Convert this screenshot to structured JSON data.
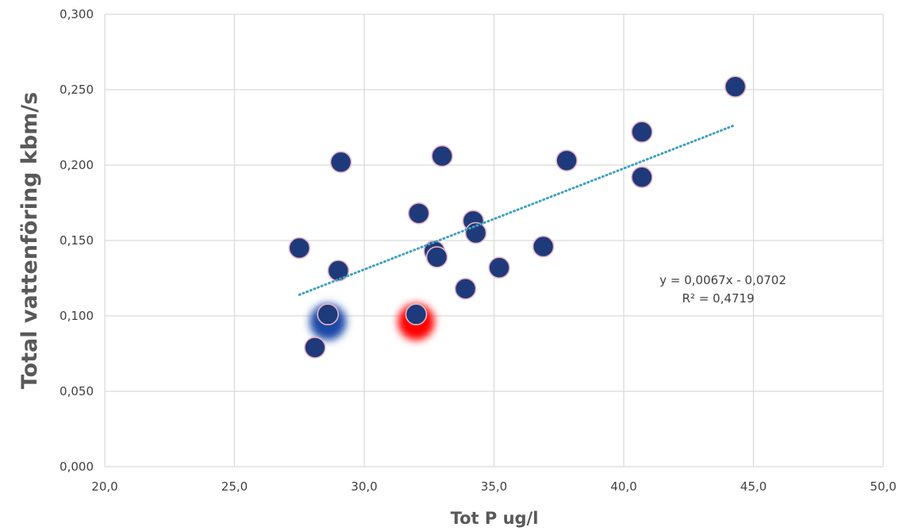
{
  "chart_data": {
    "type": "scatter",
    "xlabel": "Tot P ug/l",
    "ylabel": "Total vattenföring kbm/s",
    "xlim": [
      20,
      50
    ],
    "ylim": [
      0,
      0.3
    ],
    "x_ticks": [
      "20,0",
      "25,0",
      "30,0",
      "35,0",
      "40,0",
      "45,0",
      "50,0"
    ],
    "y_ticks": [
      "0,000",
      "0,050",
      "0,100",
      "0,150",
      "0,200",
      "0,250",
      "0,300"
    ],
    "grid": true,
    "series": [
      {
        "marker_color": "#1f3a7a",
        "marker_edge_color": "#e8b4c8",
        "points": [
          {
            "x": 27.5,
            "y": 0.145
          },
          {
            "x": 28.1,
            "y": 0.079
          },
          {
            "x": 28.6,
            "y": 0.101
          },
          {
            "x": 29.0,
            "y": 0.13
          },
          {
            "x": 29.1,
            "y": 0.202
          },
          {
            "x": 32.0,
            "y": 0.101
          },
          {
            "x": 32.1,
            "y": 0.168
          },
          {
            "x": 32.7,
            "y": 0.143
          },
          {
            "x": 32.8,
            "y": 0.139
          },
          {
            "x": 33.0,
            "y": 0.206
          },
          {
            "x": 33.9,
            "y": 0.118
          },
          {
            "x": 34.2,
            "y": 0.163
          },
          {
            "x": 34.3,
            "y": 0.155
          },
          {
            "x": 35.2,
            "y": 0.132
          },
          {
            "x": 36.9,
            "y": 0.146
          },
          {
            "x": 37.8,
            "y": 0.203
          },
          {
            "x": 40.7,
            "y": 0.222
          },
          {
            "x": 40.7,
            "y": 0.192
          },
          {
            "x": 44.3,
            "y": 0.252
          }
        ]
      }
    ],
    "highlights": [
      {
        "x": 28.6,
        "y": 0.096,
        "color": "#1a4aa8"
      },
      {
        "x": 32.0,
        "y": 0.096,
        "color": "#ff0000"
      }
    ],
    "trendline": {
      "slope": 0.0067,
      "intercept": -0.0702,
      "x_range": [
        27.5,
        44.3
      ],
      "color": "#3fa0c0",
      "equation": "y = 0,0067x - 0,0702",
      "r_squared": "R² = 0,4719"
    }
  }
}
